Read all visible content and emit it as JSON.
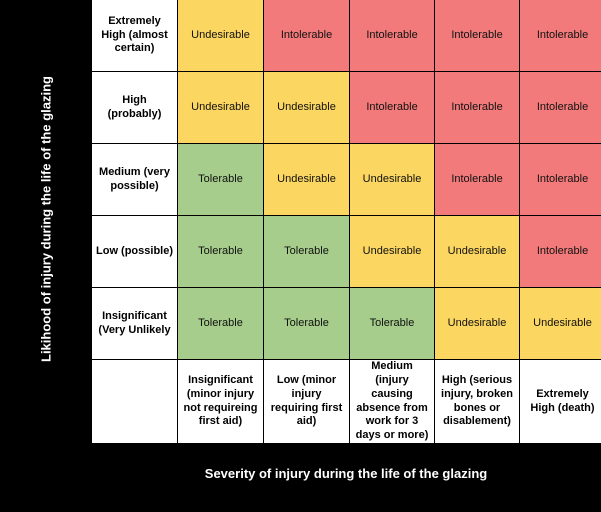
{
  "y_axis_label": "Likihood of injury during the life of the glazing",
  "x_axis_label": "Severity of injury during the life of the glazing",
  "rows": [
    {
      "label": "Extremely High (almost certain)",
      "cells": [
        "Undesirable",
        "Intolerable",
        "Intolerable",
        "Intolerable",
        "Intolerable"
      ]
    },
    {
      "label": "High (probably)",
      "cells": [
        "Undesirable",
        "Undesirable",
        "Intolerable",
        "Intolerable",
        "Intolerable"
      ]
    },
    {
      "label": "Medium (very possible)",
      "cells": [
        "Tolerable",
        "Undesirable",
        "Undesirable",
        "Intolerable",
        "Intolerable"
      ]
    },
    {
      "label": "Low (possible)",
      "cells": [
        "Tolerable",
        "Tolerable",
        "Undesirable",
        "Undesirable",
        "Intolerable"
      ]
    },
    {
      "label": "Insignificant (Very Unlikely",
      "cells": [
        "Tolerable",
        "Tolerable",
        "Tolerable",
        "Undesirable",
        "Undesirable"
      ]
    }
  ],
  "columns": [
    "Insignificant (minor injury not requireing first aid)",
    "Low (minor injury requiring first aid)",
    "Medium (injury causing absence from work for 3 days or more)",
    "High (serious injury, broken bones or disablement)",
    "Extremely High (death)"
  ],
  "colors": {
    "Tolerable": "#a6cd8b",
    "Undesirable": "#fbd661",
    "Intolerable": "#f27a7a"
  }
}
